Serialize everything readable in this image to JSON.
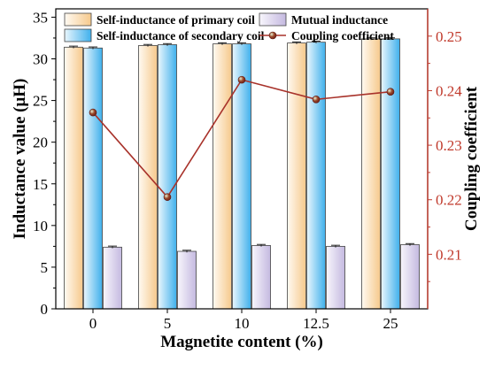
{
  "chart_data": {
    "type": "bar",
    "categories": [
      "0",
      "5",
      "10",
      "12.5",
      "25"
    ],
    "xlabel": "Magnetite content (%)",
    "ylabel": "Inductance value (μH)",
    "y2label": "Coupling coefficient",
    "ylim": [
      0,
      36
    ],
    "y2lim": [
      0.2,
      0.255
    ],
    "yticks": [
      0,
      5,
      10,
      15,
      20,
      25,
      30,
      35
    ],
    "y2ticks": [
      0.21,
      0.22,
      0.23,
      0.24,
      0.25
    ],
    "legend_position": "top",
    "series": [
      {
        "name": "Self-inductance of primary coil",
        "type": "bar",
        "axis": "left",
        "values": [
          31.4,
          31.6,
          31.8,
          31.9,
          32.4
        ],
        "color": "#f6c98c"
      },
      {
        "name": "Self-inductance of secondary coil",
        "type": "bar",
        "axis": "left",
        "values": [
          31.3,
          31.7,
          31.8,
          32.0,
          32.4
        ],
        "color": "#3fb0ec"
      },
      {
        "name": "Mutual inductance",
        "type": "bar",
        "axis": "left",
        "values": [
          7.4,
          6.9,
          7.6,
          7.5,
          7.7
        ],
        "color": "#cfc6e6"
      },
      {
        "name": "Coupling coefficient",
        "type": "line",
        "axis": "right",
        "values": [
          0.236,
          0.2205,
          0.242,
          0.2384,
          0.2398
        ],
        "color": "#a8322a"
      }
    ]
  }
}
